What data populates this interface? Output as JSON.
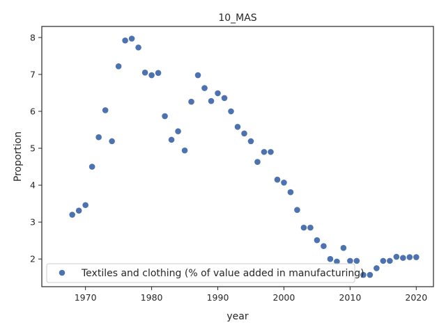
{
  "chart_data": {
    "type": "scatter",
    "title": "10_MAS",
    "xlabel": "year",
    "ylabel": "Proportion",
    "xlim": [
      1963.4,
      2022.6
    ],
    "ylim": [
      1.25,
      8.3
    ],
    "xticks": [
      1970,
      1980,
      1990,
      2000,
      2010,
      2020
    ],
    "yticks": [
      2,
      3,
      4,
      5,
      6,
      7,
      8
    ],
    "grid": false,
    "legend_position": "lower-left",
    "series": [
      {
        "name": "Textiles and clothing (% of value added in manufacturing)",
        "color": "#4c72b0",
        "points": [
          [
            1968,
            3.2
          ],
          [
            1969,
            3.31
          ],
          [
            1970,
            3.46
          ],
          [
            1971,
            4.5
          ],
          [
            1972,
            5.3
          ],
          [
            1973,
            6.03
          ],
          [
            1974,
            5.19
          ],
          [
            1975,
            7.22
          ],
          [
            1976,
            7.92
          ],
          [
            1977,
            7.97
          ],
          [
            1978,
            7.73
          ],
          [
            1979,
            7.05
          ],
          [
            1980,
            6.98
          ],
          [
            1981,
            7.04
          ],
          [
            1982,
            5.87
          ],
          [
            1983,
            5.23
          ],
          [
            1984,
            5.46
          ],
          [
            1985,
            4.94
          ],
          [
            1986,
            6.26
          ],
          [
            1987,
            6.98
          ],
          [
            1988,
            6.63
          ],
          [
            1989,
            6.28
          ],
          [
            1990,
            6.49
          ],
          [
            1991,
            6.36
          ],
          [
            1992,
            6.0
          ],
          [
            1993,
            5.58
          ],
          [
            1994,
            5.4
          ],
          [
            1995,
            5.19
          ],
          [
            1996,
            4.63
          ],
          [
            1997,
            4.9
          ],
          [
            1998,
            4.9
          ],
          [
            1999,
            4.15
          ],
          [
            2000,
            4.07
          ],
          [
            2001,
            3.81
          ],
          [
            2002,
            3.33
          ],
          [
            2003,
            2.85
          ],
          [
            2004,
            2.85
          ],
          [
            2005,
            2.51
          ],
          [
            2006,
            2.35
          ],
          [
            2007,
            2.0
          ],
          [
            2008,
            1.93
          ],
          [
            2009,
            2.3
          ],
          [
            2010,
            1.95
          ],
          [
            2011,
            1.95
          ],
          [
            2012,
            1.57
          ],
          [
            2013,
            1.57
          ],
          [
            2014,
            1.75
          ],
          [
            2015,
            1.95
          ],
          [
            2016,
            1.95
          ],
          [
            2017,
            2.06
          ],
          [
            2018,
            2.03
          ],
          [
            2019,
            2.05
          ],
          [
            2020,
            2.05
          ]
        ]
      }
    ]
  }
}
